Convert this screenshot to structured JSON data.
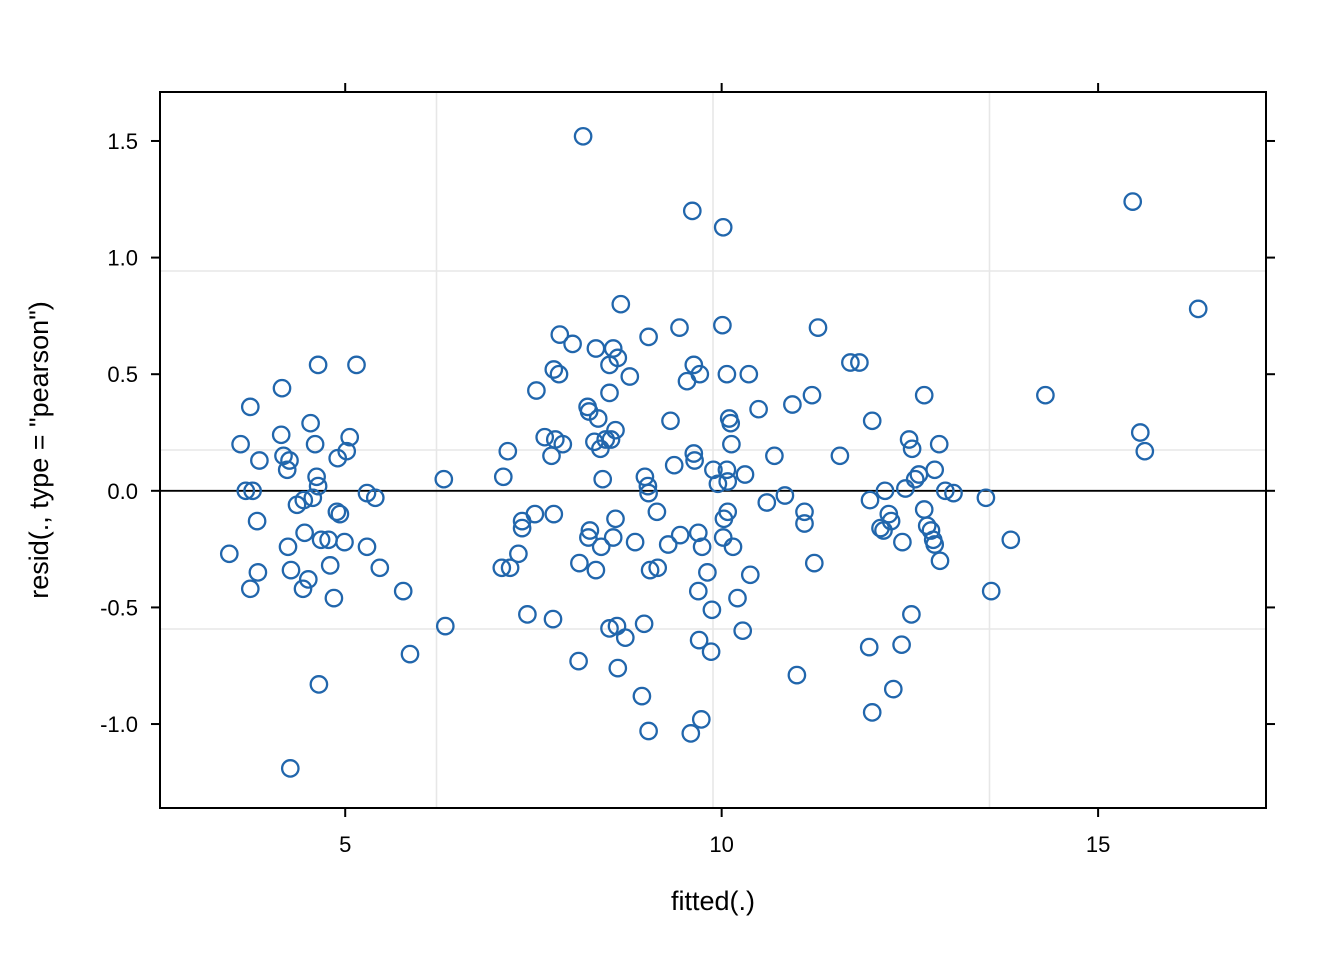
{
  "chart_data": {
    "type": "scatter",
    "title": "",
    "xlabel": "fitted(.)",
    "ylabel": "resid(., type = \"pearson\")",
    "x_ticks": [
      5,
      10,
      15
    ],
    "x_tick_labels": [
      "5",
      "10",
      "15"
    ],
    "y_ticks": [
      -1.0,
      -0.5,
      0.0,
      0.5,
      1.0,
      1.5
    ],
    "y_tick_labels": [
      "-1.0",
      "-0.5",
      "0.0",
      "0.5",
      "1.0",
      "1.5"
    ],
    "xlim": [
      2.54,
      17.23
    ],
    "ylim": [
      -1.36,
      1.71
    ],
    "zero_line_y": 0,
    "legend": "none",
    "grid": {
      "horizontal_lines": 3,
      "vertical_lines": 3,
      "placement": "evenly-spaced-quarters",
      "color": "#e7e7e7"
    },
    "marker": {
      "shape": "open-circle",
      "radius_px": 8.2,
      "stroke_px": 2.3,
      "color": "#2166ac"
    },
    "axis_color": "#000000",
    "zero_line_color": "#000000",
    "background": "#ffffff",
    "points": [
      [
        8.16,
        1.52
      ],
      [
        9.61,
        1.2
      ],
      [
        10.02,
        1.13
      ],
      [
        15.46,
        1.24
      ],
      [
        16.33,
        0.78
      ],
      [
        8.66,
        0.8
      ],
      [
        4.64,
        0.54
      ],
      [
        5.15,
        0.54
      ],
      [
        4.16,
        0.44
      ],
      [
        3.74,
        0.36
      ],
      [
        4.54,
        0.29
      ],
      [
        4.15,
        0.24
      ],
      [
        3.61,
        0.2
      ],
      [
        4.6,
        0.2
      ],
      [
        5.06,
        0.23
      ],
      [
        5.02,
        0.17
      ],
      [
        4.9,
        0.14
      ],
      [
        3.86,
        0.13
      ],
      [
        4.18,
        0.15
      ],
      [
        4.26,
        0.13
      ],
      [
        4.23,
        0.09
      ],
      [
        4.62,
        0.06
      ],
      [
        3.68,
        0.0
      ],
      [
        3.77,
        0.0
      ],
      [
        4.64,
        0.02
      ],
      [
        5.29,
        -0.01
      ],
      [
        5.4,
        -0.03
      ],
      [
        4.36,
        -0.06
      ],
      [
        4.45,
        -0.04
      ],
      [
        4.57,
        -0.03
      ],
      [
        4.89,
        -0.09
      ],
      [
        4.93,
        -0.1
      ],
      [
        3.83,
        -0.13
      ],
      [
        4.46,
        -0.18
      ],
      [
        4.24,
        -0.24
      ],
      [
        4.68,
        -0.21
      ],
      [
        4.78,
        -0.21
      ],
      [
        4.99,
        -0.22
      ],
      [
        5.29,
        -0.24
      ],
      [
        3.46,
        -0.27
      ],
      [
        3.84,
        -0.35
      ],
      [
        3.74,
        -0.42
      ],
      [
        4.28,
        -0.34
      ],
      [
        4.51,
        -0.38
      ],
      [
        4.44,
        -0.42
      ],
      [
        4.8,
        -0.32
      ],
      [
        5.46,
        -0.33
      ],
      [
        4.85,
        -0.46
      ],
      [
        5.77,
        -0.43
      ],
      [
        5.86,
        -0.7
      ],
      [
        4.65,
        -0.83
      ],
      [
        4.27,
        -1.19
      ],
      [
        6.31,
        0.05
      ],
      [
        6.33,
        -0.58
      ],
      [
        7.85,
        0.67
      ],
      [
        8.02,
        0.63
      ],
      [
        8.33,
        0.61
      ],
      [
        8.56,
        0.61
      ],
      [
        8.62,
        0.57
      ],
      [
        8.51,
        0.54
      ],
      [
        9.03,
        0.66
      ],
      [
        9.44,
        0.7
      ],
      [
        9.63,
        0.54
      ],
      [
        9.71,
        0.5
      ],
      [
        9.54,
        0.47
      ],
      [
        7.77,
        0.52
      ],
      [
        7.84,
        0.5
      ],
      [
        7.54,
        0.43
      ],
      [
        8.78,
        0.49
      ],
      [
        8.51,
        0.42
      ],
      [
        8.22,
        0.36
      ],
      [
        8.24,
        0.34
      ],
      [
        8.36,
        0.31
      ],
      [
        9.32,
        0.3
      ],
      [
        8.59,
        0.26
      ],
      [
        8.46,
        0.22
      ],
      [
        8.53,
        0.22
      ],
      [
        8.31,
        0.21
      ],
      [
        8.39,
        0.18
      ],
      [
        7.65,
        0.23
      ],
      [
        7.79,
        0.22
      ],
      [
        7.89,
        0.2
      ],
      [
        7.74,
        0.15
      ],
      [
        7.16,
        0.17
      ],
      [
        9.63,
        0.16
      ],
      [
        9.64,
        0.13
      ],
      [
        9.37,
        0.11
      ],
      [
        7.1,
        0.06
      ],
      [
        8.42,
        0.05
      ],
      [
        8.98,
        0.06
      ],
      [
        9.02,
        0.02
      ],
      [
        9.03,
        -0.01
      ],
      [
        7.52,
        -0.1
      ],
      [
        7.77,
        -0.1
      ],
      [
        7.35,
        -0.13
      ],
      [
        7.35,
        -0.16
      ],
      [
        8.59,
        -0.12
      ],
      [
        9.14,
        -0.09
      ],
      [
        8.25,
        -0.17
      ],
      [
        8.23,
        -0.2
      ],
      [
        8.56,
        -0.2
      ],
      [
        8.4,
        -0.24
      ],
      [
        8.85,
        -0.22
      ],
      [
        9.29,
        -0.23
      ],
      [
        9.45,
        -0.19
      ],
      [
        9.69,
        -0.18
      ],
      [
        9.74,
        -0.24
      ],
      [
        7.3,
        -0.27
      ],
      [
        7.08,
        -0.33
      ],
      [
        7.19,
        -0.33
      ],
      [
        8.11,
        -0.31
      ],
      [
        8.33,
        -0.34
      ],
      [
        9.05,
        -0.34
      ],
      [
        9.15,
        -0.33
      ],
      [
        9.81,
        -0.35
      ],
      [
        9.69,
        -0.43
      ],
      [
        9.87,
        -0.51
      ],
      [
        9.7,
        -0.64
      ],
      [
        9.86,
        -0.69
      ],
      [
        7.42,
        -0.53
      ],
      [
        7.76,
        -0.55
      ],
      [
        8.51,
        -0.59
      ],
      [
        8.61,
        -0.58
      ],
      [
        8.72,
        -0.63
      ],
      [
        8.97,
        -0.57
      ],
      [
        8.1,
        -0.73
      ],
      [
        8.62,
        -0.76
      ],
      [
        8.94,
        -0.88
      ],
      [
        9.03,
        -1.03
      ],
      [
        9.59,
        -1.04
      ],
      [
        9.73,
        -0.98
      ],
      [
        10.01,
        0.71
      ],
      [
        11.28,
        0.7
      ],
      [
        10.07,
        0.5
      ],
      [
        10.36,
        0.5
      ],
      [
        11.71,
        0.55
      ],
      [
        11.83,
        0.55
      ],
      [
        12.69,
        0.41
      ],
      [
        11.2,
        0.41
      ],
      [
        10.94,
        0.37
      ],
      [
        10.49,
        0.35
      ],
      [
        10.1,
        0.31
      ],
      [
        10.12,
        0.29
      ],
      [
        12.0,
        0.3
      ],
      [
        12.49,
        0.22
      ],
      [
        12.53,
        0.18
      ],
      [
        12.89,
        0.2
      ],
      [
        10.13,
        0.2
      ],
      [
        10.7,
        0.15
      ],
      [
        11.57,
        0.15
      ],
      [
        9.89,
        0.09
      ],
      [
        10.07,
        0.09
      ],
      [
        9.95,
        0.03
      ],
      [
        10.08,
        0.04
      ],
      [
        10.31,
        0.07
      ],
      [
        12.17,
        0.0
      ],
      [
        12.44,
        0.01
      ],
      [
        12.57,
        0.05
      ],
      [
        12.62,
        0.07
      ],
      [
        12.83,
        0.09
      ],
      [
        12.97,
        0.0
      ],
      [
        13.08,
        -0.01
      ],
      [
        13.51,
        -0.03
      ],
      [
        11.97,
        -0.04
      ],
      [
        10.84,
        -0.02
      ],
      [
        10.6,
        -0.05
      ],
      [
        10.08,
        -0.09
      ],
      [
        10.03,
        -0.12
      ],
      [
        11.1,
        -0.09
      ],
      [
        11.1,
        -0.14
      ],
      [
        12.22,
        -0.1
      ],
      [
        12.25,
        -0.13
      ],
      [
        12.11,
        -0.16
      ],
      [
        12.15,
        -0.17
      ],
      [
        12.4,
        -0.22
      ],
      [
        12.69,
        -0.08
      ],
      [
        12.73,
        -0.15
      ],
      [
        12.78,
        -0.17
      ],
      [
        12.81,
        -0.21
      ],
      [
        12.83,
        -0.23
      ],
      [
        10.02,
        -0.2
      ],
      [
        10.15,
        -0.24
      ],
      [
        11.23,
        -0.31
      ],
      [
        12.9,
        -0.3
      ],
      [
        10.38,
        -0.36
      ],
      [
        10.21,
        -0.46
      ],
      [
        10.28,
        -0.6
      ],
      [
        12.52,
        -0.53
      ],
      [
        11.96,
        -0.67
      ],
      [
        12.39,
        -0.66
      ],
      [
        11.0,
        -0.79
      ],
      [
        12.28,
        -0.85
      ],
      [
        12.0,
        -0.95
      ],
      [
        13.58,
        -0.43
      ],
      [
        13.84,
        -0.21
      ],
      [
        14.3,
        0.41
      ],
      [
        15.56,
        0.25
      ],
      [
        15.62,
        0.17
      ]
    ]
  }
}
